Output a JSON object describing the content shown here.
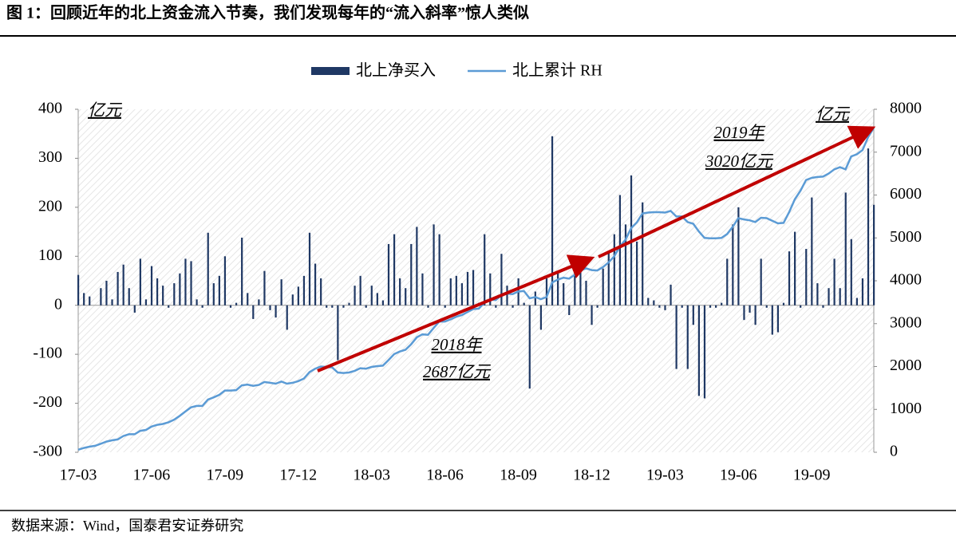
{
  "chart_data": {
    "type": "bar-line",
    "title": "图 1：回顾近年的北上资金流入节奏，我们发现每年的“流入斜率”惊人类似",
    "source": "数据来源：Wind，国泰君安证券研究",
    "y_unit": "亿元",
    "y2_unit": "亿元",
    "annotations": [
      "2018年",
      "2687亿元",
      "2019年",
      "3020亿元"
    ],
    "categories": [
      "17-03",
      null,
      null,
      null,
      null,
      null,
      null,
      null,
      null,
      null,
      null,
      null,
      null,
      "17-06",
      null,
      null,
      null,
      null,
      null,
      null,
      null,
      null,
      null,
      null,
      null,
      null,
      "17-09",
      null,
      null,
      null,
      null,
      null,
      null,
      null,
      null,
      null,
      null,
      null,
      null,
      "17-12",
      null,
      null,
      null,
      null,
      null,
      null,
      null,
      null,
      null,
      null,
      null,
      null,
      "18-03",
      null,
      null,
      null,
      null,
      null,
      null,
      null,
      null,
      null,
      null,
      null,
      null,
      "18-06",
      null,
      null,
      null,
      null,
      null,
      null,
      null,
      null,
      null,
      null,
      null,
      null,
      "18-09",
      null,
      null,
      null,
      null,
      null,
      null,
      null,
      null,
      null,
      null,
      null,
      null,
      "18-12",
      null,
      null,
      null,
      null,
      null,
      null,
      null,
      null,
      null,
      null,
      null,
      null,
      "19-03",
      null,
      null,
      null,
      null,
      null,
      null,
      null,
      null,
      null,
      null,
      null,
      null,
      "19-06",
      null,
      null,
      null,
      null,
      null,
      null,
      null,
      null,
      null,
      null,
      null,
      null,
      "19-09",
      null,
      null,
      null,
      null,
      null,
      null,
      null,
      null,
      null,
      null,
      null
    ],
    "series": [
      {
        "name": "北上净买入",
        "type": "bar",
        "color": "#1f3864",
        "values": [
          62,
          25,
          18,
          0,
          35,
          50,
          12,
          68,
          83,
          35,
          -15,
          95,
          12,
          80,
          55,
          40,
          -5,
          45,
          65,
          95,
          90,
          12,
          -5,
          148,
          45,
          60,
          100,
          -5,
          5,
          138,
          25,
          -28,
          12,
          70,
          -10,
          -25,
          53,
          -50,
          22,
          38,
          60,
          148,
          85,
          55,
          -5,
          -5,
          -112,
          -5,
          5,
          40,
          60,
          -5,
          40,
          25,
          10,
          125,
          145,
          55,
          35,
          125,
          160,
          65,
          -5,
          165,
          145,
          -5,
          55,
          60,
          45,
          68,
          72,
          5,
          145,
          65,
          -5,
          105,
          40,
          -5,
          55,
          5,
          -170,
          28,
          -50,
          55,
          345,
          65,
          45,
          -20,
          85,
          100,
          50,
          -40,
          -5,
          75,
          110,
          145,
          225,
          165,
          265,
          130,
          210,
          15,
          10,
          -5,
          -10,
          42,
          -130,
          -5,
          -130,
          -40,
          -185,
          -190,
          -5,
          -5,
          5,
          95,
          165,
          200,
          -30,
          -15,
          -40,
          95,
          -5,
          -60,
          -55,
          5,
          110,
          150,
          -5,
          115,
          220,
          45,
          -5,
          35,
          95,
          35,
          230,
          135,
          15,
          55,
          320,
          205
        ]
      },
      {
        "name": "北上累计 RH",
        "type": "line",
        "axis": "y2",
        "color": "#5b9bd5",
        "values": [
          60,
          100,
          130,
          150,
          200,
          250,
          280,
          300,
          380,
          420,
          420,
          500,
          520,
          600,
          640,
          660,
          700,
          760,
          850,
          950,
          1050,
          1080,
          1080,
          1230,
          1280,
          1340,
          1440,
          1440,
          1450,
          1560,
          1580,
          1550,
          1570,
          1640,
          1620,
          1600,
          1650,
          1600,
          1620,
          1660,
          1720,
          1870,
          1950,
          2000,
          1990,
          1980,
          1860,
          1850,
          1860,
          1900,
          1960,
          1950,
          1990,
          2010,
          2020,
          2150,
          2290,
          2350,
          2390,
          2520,
          2680,
          2750,
          2740,
          2900,
          3050,
          3050,
          3100,
          3160,
          3200,
          3270,
          3340,
          3350,
          3490,
          3560,
          3550,
          3660,
          3700,
          3690,
          3750,
          3760,
          3590,
          3620,
          3570,
          3620,
          3960,
          4030,
          4070,
          4050,
          4140,
          4240,
          4290,
          4250,
          4240,
          4320,
          4430,
          4570,
          4800,
          4960,
          5230,
          5360,
          5570,
          5590,
          5600,
          5600,
          5590,
          5630,
          5500,
          5500,
          5370,
          5330,
          5150,
          5000,
          4990,
          4990,
          5000,
          5090,
          5260,
          5460,
          5430,
          5410,
          5370,
          5470,
          5460,
          5400,
          5340,
          5350,
          5600,
          5900,
          6100,
          6350,
          6400,
          6420,
          6430,
          6500,
          6600,
          6650,
          6600,
          6900,
          6950,
          7050,
          7350,
          7570
        ]
      }
    ],
    "ylim": [
      -300,
      400
    ],
    "yticks": [
      -300,
      -200,
      -100,
      0,
      100,
      200,
      300,
      400
    ],
    "y2lim": [
      0,
      8000
    ],
    "y2ticks": [
      0,
      1000,
      2000,
      3000,
      4000,
      5000,
      6000,
      7000,
      8000
    ],
    "legend": "top"
  }
}
